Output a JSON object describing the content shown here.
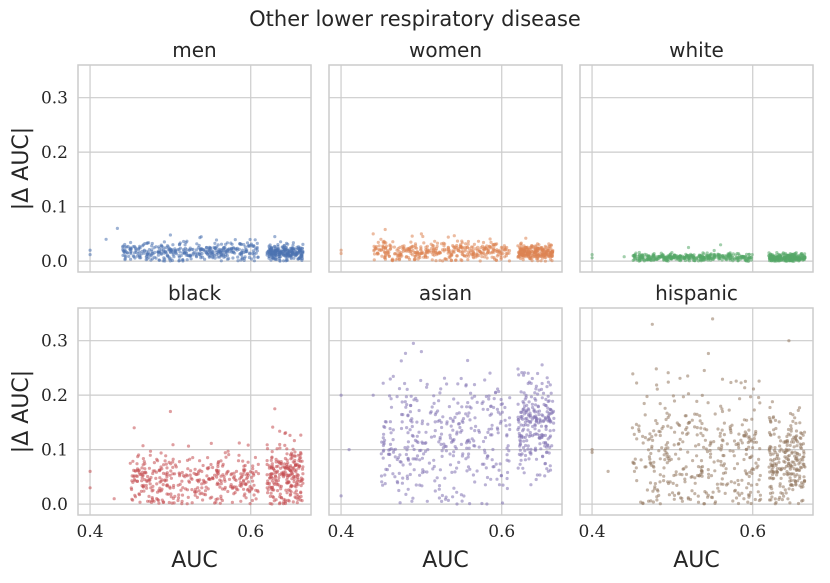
{
  "chart_data": {
    "type": "scatter",
    "title": "Other lower respiratory disease",
    "xlabel": "AUC",
    "ylabel": "|Δ AUC|",
    "xlim": [
      0.385,
      0.675
    ],
    "ylim": [
      -0.02,
      0.36
    ],
    "xticks": [
      0.4,
      0.6
    ],
    "xtick_labels": [
      "0.4",
      "0.6"
    ],
    "yticks": [
      0.0,
      0.1,
      0.2,
      0.3
    ],
    "ytick_labels": [
      "0.0",
      "0.1",
      "0.2",
      "0.3"
    ],
    "grid": true,
    "panels": [
      {
        "name": "men",
        "color": "#4c72b0",
        "clusters": [
          {
            "xmin": 0.44,
            "xmax": 0.61,
            "ymean": 0.018,
            "ysd": 0.009,
            "ymax": 0.05,
            "n": 380
          },
          {
            "xmin": 0.62,
            "xmax": 0.665,
            "ymean": 0.016,
            "ysd": 0.007,
            "ymax": 0.04,
            "n": 240
          }
        ],
        "extras": [
          [
            0.4,
            0.012
          ],
          [
            0.4,
            0.02
          ],
          [
            0.434,
            0.06
          ],
          [
            0.42,
            0.04
          ],
          [
            0.5,
            0.048
          ],
          [
            0.63,
            0.045
          ]
        ]
      },
      {
        "name": "women",
        "color": "#dd8452",
        "clusters": [
          {
            "xmin": 0.44,
            "xmax": 0.61,
            "ymean": 0.018,
            "ysd": 0.009,
            "ymax": 0.05,
            "n": 380
          },
          {
            "xmin": 0.62,
            "xmax": 0.665,
            "ymean": 0.016,
            "ysd": 0.007,
            "ymax": 0.04,
            "n": 240
          }
        ],
        "extras": [
          [
            0.4,
            0.02
          ],
          [
            0.4,
            0.014
          ],
          [
            0.44,
            0.05
          ],
          [
            0.455,
            0.058
          ],
          [
            0.5,
            0.05
          ],
          [
            0.63,
            0.042
          ]
        ]
      },
      {
        "name": "white",
        "color": "#55a868",
        "clusters": [
          {
            "xmin": 0.45,
            "xmax": 0.6,
            "ymean": 0.007,
            "ysd": 0.004,
            "ymax": 0.025,
            "n": 380
          },
          {
            "xmin": 0.62,
            "xmax": 0.665,
            "ymean": 0.006,
            "ysd": 0.004,
            "ymax": 0.02,
            "n": 240
          }
        ],
        "extras": [
          [
            0.4,
            0.012
          ],
          [
            0.4,
            0.006
          ],
          [
            0.44,
            0.008
          ],
          [
            0.56,
            0.03
          ],
          [
            0.52,
            0.025
          ]
        ]
      },
      {
        "name": "black",
        "color": "#c44e52",
        "clusters": [
          {
            "xmin": 0.45,
            "xmax": 0.61,
            "ymean": 0.045,
            "ysd": 0.025,
            "ymax": 0.17,
            "n": 380
          },
          {
            "xmin": 0.62,
            "xmax": 0.665,
            "ymean": 0.055,
            "ysd": 0.03,
            "ymax": 0.18,
            "n": 240
          }
        ],
        "extras": [
          [
            0.4,
            0.06
          ],
          [
            0.4,
            0.03
          ],
          [
            0.43,
            0.01
          ],
          [
            0.455,
            0.14
          ],
          [
            0.5,
            0.17
          ],
          [
            0.63,
            0.175
          ]
        ]
      },
      {
        "name": "asian",
        "color": "#8172b3",
        "clusters": [
          {
            "xmin": 0.45,
            "xmax": 0.61,
            "ymean": 0.12,
            "ysd": 0.06,
            "ymax": 0.3,
            "n": 380
          },
          {
            "xmin": 0.62,
            "xmax": 0.665,
            "ymean": 0.15,
            "ysd": 0.045,
            "ymax": 0.26,
            "n": 240
          }
        ],
        "extras": [
          [
            0.4,
            0.2
          ],
          [
            0.4,
            0.015
          ],
          [
            0.41,
            0.1
          ],
          [
            0.44,
            0.2
          ],
          [
            0.49,
            0.295
          ],
          [
            0.5,
            0.28
          ]
        ]
      },
      {
        "name": "hispanic",
        "color": "#937860",
        "clusters": [
          {
            "xmin": 0.45,
            "xmax": 0.61,
            "ymean": 0.09,
            "ysd": 0.065,
            "ymax": 0.34,
            "n": 380
          },
          {
            "xmin": 0.62,
            "xmax": 0.665,
            "ymean": 0.08,
            "ysd": 0.045,
            "ymax": 0.3,
            "n": 240
          }
        ],
        "extras": [
          [
            0.4,
            0.1
          ],
          [
            0.4,
            0.095
          ],
          [
            0.475,
            0.33
          ],
          [
            0.55,
            0.34
          ],
          [
            0.645,
            0.3
          ],
          [
            0.42,
            0.06
          ]
        ]
      }
    ]
  }
}
